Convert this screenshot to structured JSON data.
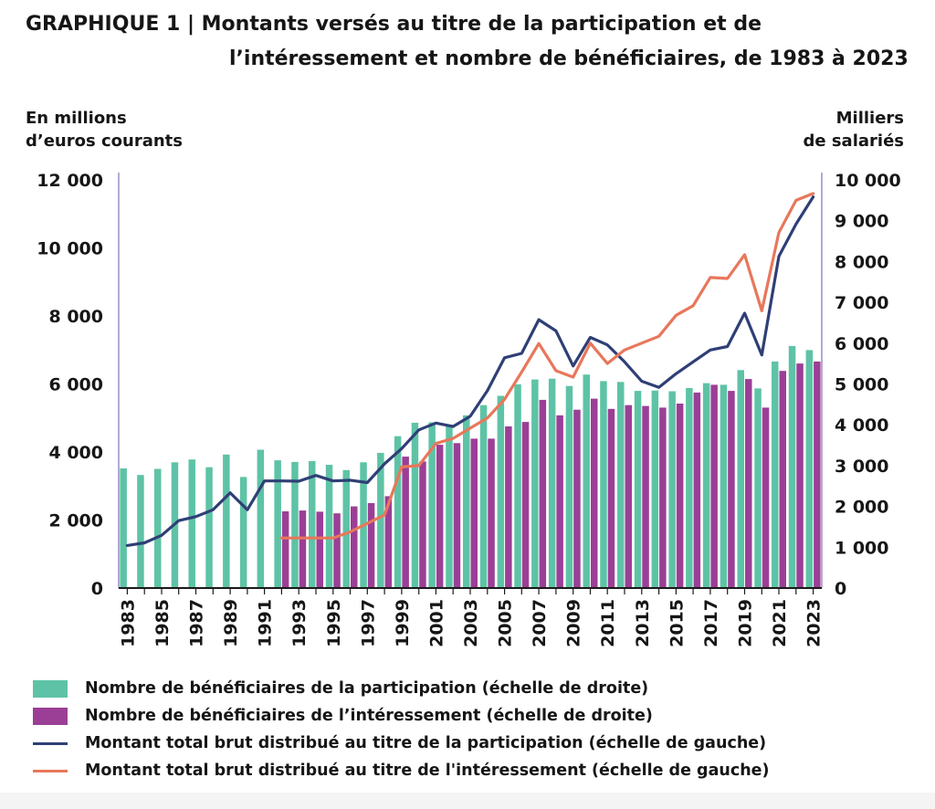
{
  "title_line1": "GRAPHIQUE 1 | Montants versés au titre de la participation et de",
  "title_line2": "l’intéressement et nombre de bénéficiaires, de 1983 à 2023",
  "left_unit": [
    "En millions",
    "d’euros courants"
  ],
  "right_unit": [
    "Milliers",
    "de salariés"
  ],
  "colors": {
    "participation_bar": "#5ec3a6",
    "interessement_bar": "#9b3f96",
    "participation_line": "#2f3f76",
    "interessement_line": "#e8775b",
    "axis": "#9a8ec4"
  },
  "legend": [
    {
      "label": "Nombre de bénéficiaires de la participation (échelle de droite)",
      "kind": "bar",
      "color": "#5ec3a6"
    },
    {
      "label": "Nombre de bénéficiaires de l’intéressement (échelle de droite)",
      "kind": "bar",
      "color": "#9b3f96"
    },
    {
      "label": "Montant total brut distribué au titre de la participation (échelle de gauche)",
      "kind": "line",
      "color": "#2f3f76"
    },
    {
      "label": "Montant total brut distribué au titre de l'intéressement (échelle de gauche)",
      "kind": "line",
      "color": "#e8775b"
    }
  ],
  "chart_data": {
    "type": "bar",
    "title": "GRAPHIQUE 1 | Montants versés au titre de la participation et de l’intéressement et nombre de bénéficiaires, de 1983 à 2023",
    "xlabel": "",
    "ylabel_left": "En millions d’euros courants",
    "ylabel_right": "Milliers de salariés",
    "ylim_left": [
      0,
      12000
    ],
    "ylim_right": [
      0,
      10000
    ],
    "yticks_left": [
      "0",
      "2 000",
      "4 000",
      "6 000",
      "8 000",
      "10 000",
      "12 000"
    ],
    "yticks_right": [
      "0",
      "1 000",
      "2 000",
      "3 000",
      "4 000",
      "5 000",
      "6 000",
      "7 000",
      "8 000",
      "9 000",
      "10 000"
    ],
    "x_tick_labels": [
      "1983",
      "1985",
      "1987",
      "1989",
      "1991",
      "1993",
      "1995",
      "1997",
      "1999",
      "2001",
      "2003",
      "2005",
      "2007",
      "2009",
      "2011",
      "2013",
      "2015",
      "2017",
      "2019",
      "2021",
      "2023"
    ],
    "categories": [
      1983,
      1984,
      1985,
      1986,
      1987,
      1988,
      1989,
      1990,
      1991,
      1992,
      1993,
      1994,
      1995,
      1996,
      1997,
      1998,
      1999,
      2000,
      2001,
      2002,
      2003,
      2004,
      2005,
      2006,
      2007,
      2008,
      2009,
      2010,
      2011,
      2012,
      2013,
      2014,
      2015,
      2016,
      2017,
      2018,
      2019,
      2020,
      2021,
      2022,
      2023
    ],
    "series": [
      {
        "name": "Nombre de bénéficiaires de la participation (échelle de droite)",
        "kind": "bar",
        "axis": "right",
        "values": [
          2930,
          2770,
          2920,
          3080,
          3150,
          2960,
          3270,
          2720,
          3390,
          3130,
          3090,
          3110,
          3020,
          2890,
          3080,
          3310,
          3720,
          4050,
          4060,
          4000,
          4230,
          4480,
          4710,
          4990,
          5110,
          5130,
          4950,
          5230,
          5070,
          5050,
          4830,
          4840,
          4820,
          4900,
          5020,
          4980,
          5340,
          4890,
          5550,
          5930,
          5830
        ],
        "note": "1983-2023"
      },
      {
        "name": "Nombre de bénéficiaires de l’intéressement (échelle de droite)",
        "kind": "bar",
        "axis": "right",
        "values": [
          null,
          null,
          null,
          null,
          null,
          null,
          null,
          null,
          null,
          1880,
          1900,
          1870,
          1830,
          2000,
          2080,
          2250,
          3220,
          3100,
          3510,
          3550,
          3660,
          3660,
          3960,
          4070,
          4610,
          4230,
          4370,
          4640,
          4390,
          4480,
          4460,
          4420,
          4520,
          4790,
          4980,
          4830,
          5120,
          4420,
          5320,
          5500,
          5550
        ]
      },
      {
        "name": "Montant total brut distribué au titre de la participation (échelle de gauche)",
        "kind": "line",
        "axis": "left",
        "values": [
          1250,
          1330,
          1550,
          1980,
          2100,
          2300,
          2800,
          2300,
          3150,
          3150,
          3140,
          3310,
          3150,
          3170,
          3100,
          3650,
          4100,
          4650,
          4850,
          4750,
          5050,
          5800,
          6770,
          6900,
          7890,
          7560,
          6530,
          7370,
          7150,
          6650,
          6080,
          5900,
          6300,
          6650,
          7000,
          7100,
          8080,
          6850,
          9750,
          10700,
          11500
        ]
      },
      {
        "name": "Montant total brut distribué au titre de l'intéressement (échelle de gauche)",
        "kind": "line",
        "axis": "left",
        "values": [
          null,
          null,
          null,
          null,
          null,
          null,
          null,
          null,
          null,
          1470,
          1470,
          1470,
          1470,
          1650,
          1900,
          2150,
          3560,
          3600,
          4250,
          4400,
          4700,
          5000,
          5550,
          6350,
          7190,
          6390,
          6200,
          7200,
          6600,
          7000,
          7200,
          7400,
          8020,
          8300,
          9130,
          9100,
          9800,
          8150,
          10450,
          11400,
          11600
        ]
      }
    ],
    "grid": false,
    "legend_position": "bottom"
  }
}
